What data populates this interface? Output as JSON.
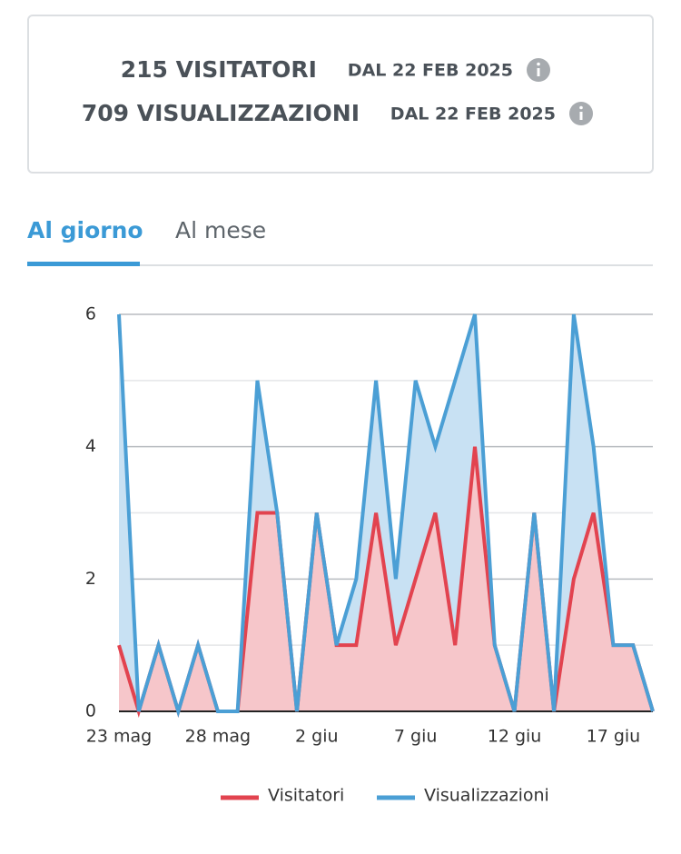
{
  "stats": [
    {
      "count": "215 VISITATORI",
      "since": "DAL 22 FEB 2025"
    },
    {
      "count": "709 VISUALIZZAZIONI",
      "since": "DAL 22 FEB 2025"
    }
  ],
  "tabs": [
    "Al giorno",
    "Al mese"
  ],
  "chart_data": {
    "type": "area",
    "categories": [
      "23 mag",
      null,
      null,
      null,
      null,
      "28 mag",
      null,
      null,
      null,
      null,
      "2 giu",
      null,
      null,
      null,
      null,
      "7 giu",
      null,
      null,
      null,
      null,
      "12 giu",
      null,
      null,
      null,
      null,
      "17 giu",
      null,
      null
    ],
    "series": [
      {
        "name": "Visitatori",
        "color": "#e2434f",
        "fill": "#f6c6ca",
        "values": [
          1,
          0,
          1,
          0,
          1,
          0,
          0,
          3,
          3,
          0,
          3,
          1,
          1,
          3,
          1,
          2,
          3,
          1,
          4,
          1,
          0,
          3,
          0,
          2,
          3,
          1,
          1,
          0
        ]
      },
      {
        "name": "Visualizzazioni",
        "color": "#4b9fd5",
        "fill": "#c8e1f3",
        "values": [
          6,
          0,
          1,
          0,
          1,
          0,
          0,
          5,
          3,
          0,
          3,
          1,
          2,
          5,
          2,
          5,
          4,
          5,
          6,
          1,
          0,
          3,
          0,
          6,
          4,
          1,
          1,
          0
        ]
      }
    ],
    "ylim": [
      0,
      6
    ],
    "yticks": [
      0,
      2,
      4,
      6
    ],
    "y_minor_grid": [
      1,
      3,
      5
    ],
    "grid": true
  }
}
